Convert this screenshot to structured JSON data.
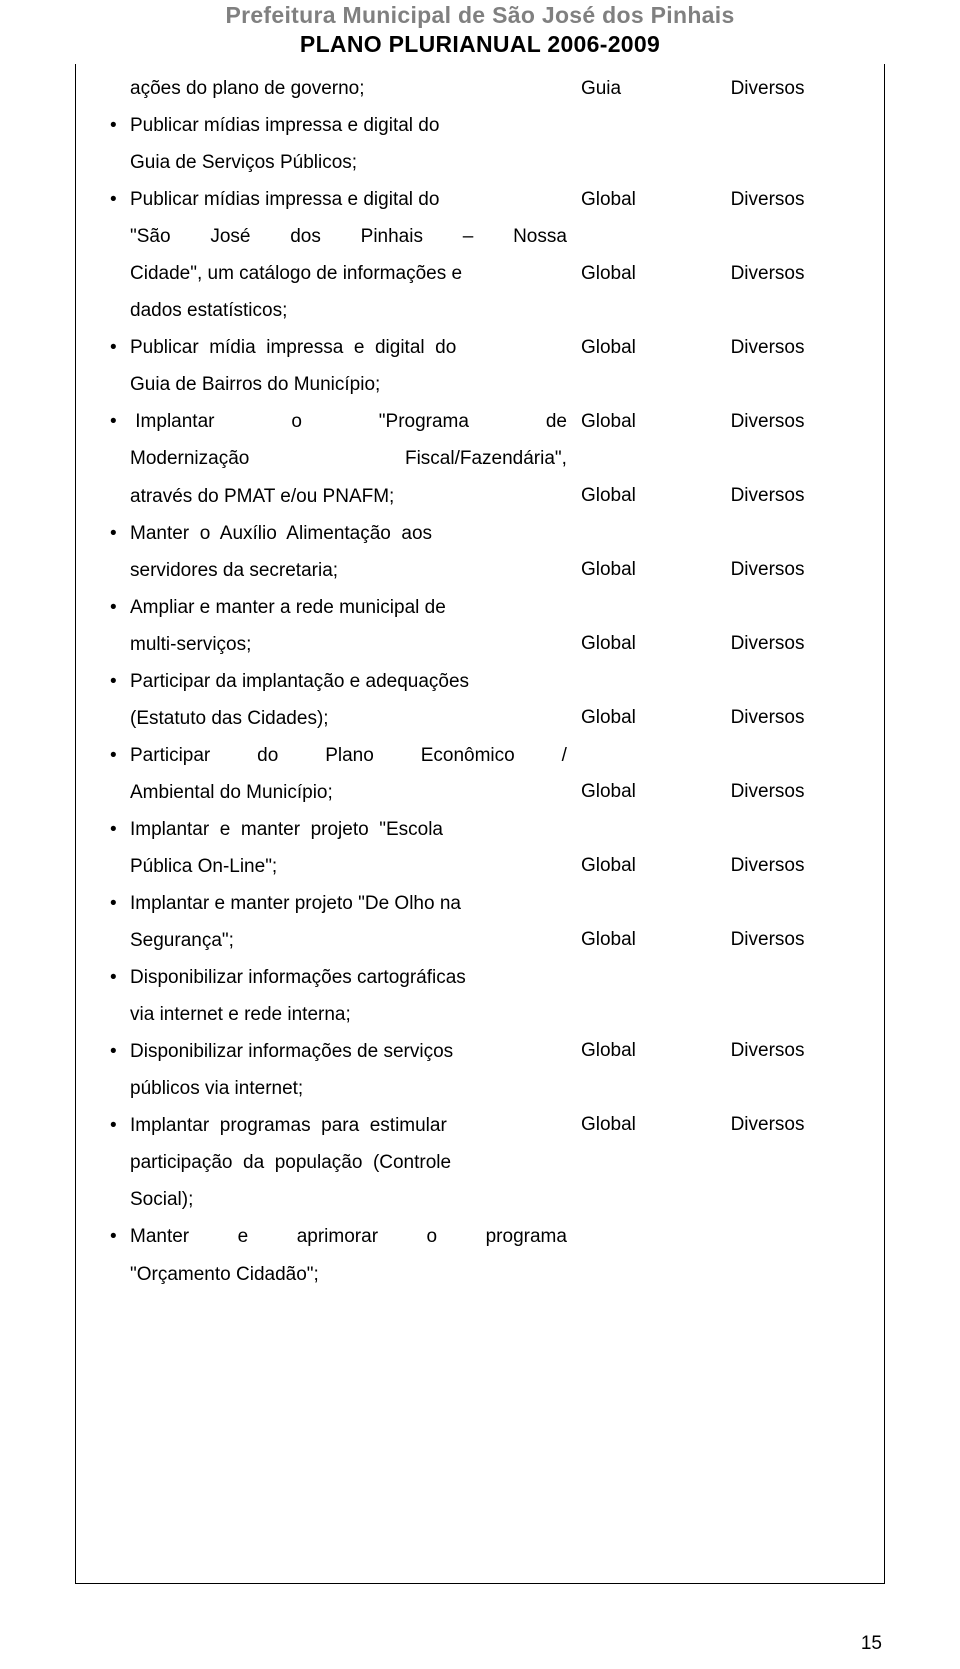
{
  "colors": {
    "background": "#ffffff",
    "text": "#000000",
    "header_grey": "#808080",
    "border": "#000000"
  },
  "typography": {
    "body_fontsize_pt": 14,
    "header_fontsize_pt": 17,
    "line_height": 1.95,
    "font_family": "Arial"
  },
  "header": {
    "line1": "Prefeitura Municipal de São José dos Pinhais",
    "line2": "PLANO PLURIANUAL 2006-2009"
  },
  "continuation_line": "ações do plano de governo;",
  "bullets": [
    "Publicar mídias impressa e digital do Guia de Serviços Públicos;",
    "Publicar mídias impressa e digital do \"São José dos Pinhais – Nossa Cidade\", um catálogo de informações e dados estatísticos;",
    "Publicar mídia impressa e digital do Guia de Bairros do Município;",
    "Implantar o \"Programa de Modernização Fiscal/Fazendária\", através do PMAT e/ou PNAFM;",
    "Manter o Auxílio Alimentação aos servidores da secretaria;",
    "Ampliar e manter a rede municipal de multi-serviços;",
    "Participar da implantação e adequações (Estatuto das Cidades);",
    "Participar do Plano Econômico / Ambiental do Município;",
    "Implantar e manter projeto \"Escola Pública On-Line\";",
    "Implantar e manter projeto \"De Olho na Segurança\";",
    "Disponibilizar informações cartográficas via internet e rede interna;",
    "Disponibilizar informações de serviços públicos via internet;",
    "Implantar programas para estimular participação da população (Controle Social);",
    "Manter e aprimorar o programa \"Orçamento Cidadão\";"
  ],
  "right_pairs": [
    {
      "c1": "Guia",
      "c2": "Diversos"
    },
    {
      "c1": "Global",
      "c2": "Diversos"
    },
    {
      "c1": "Global",
      "c2": "Diversos"
    },
    {
      "c1": "Global",
      "c2": "Diversos"
    },
    {
      "c1": "Global",
      "c2": "Diversos"
    },
    {
      "c1": "Global",
      "c2": "Diversos"
    },
    {
      "c1": "Global",
      "c2": "Diversos"
    },
    {
      "c1": "Global",
      "c2": "Diversos"
    },
    {
      "c1": "Global",
      "c2": "Diversos"
    },
    {
      "c1": "Global",
      "c2": "Diversos"
    },
    {
      "c1": "Global",
      "c2": "Diversos"
    },
    {
      "c1": "Global",
      "c2": "Diversos"
    },
    {
      "c1": "Global",
      "c2": "Diversos"
    },
    {
      "c1": "Global",
      "c2": "Diversos"
    }
  ],
  "right_offsets_lines": [
    1,
    4,
    6,
    8,
    10,
    12,
    14,
    16,
    18,
    20,
    22,
    24,
    27,
    29
  ],
  "page_number": "15"
}
